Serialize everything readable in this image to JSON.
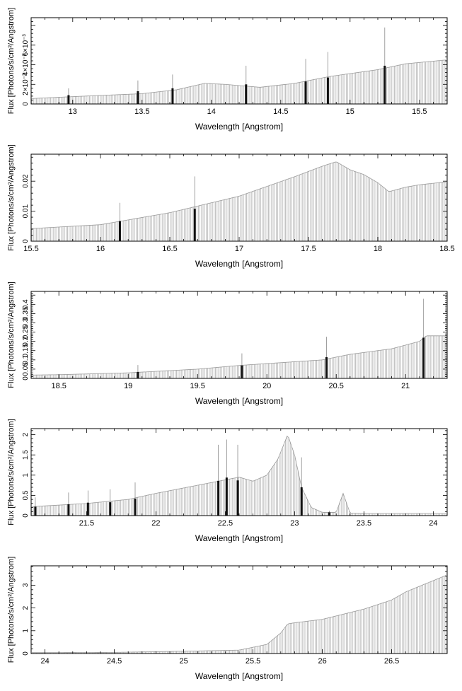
{
  "chart_data": [
    {
      "type": "bar",
      "xlabel": "Wavelength [Angstrom]",
      "ylabel": "Flux [Photons/s/cm²/Angstrom]",
      "xlim": [
        12.7,
        15.7
      ],
      "ylim": [
        0,
        0.0088
      ],
      "xticks": [
        13,
        13.5,
        14,
        14.5,
        15,
        15.5
      ],
      "xtick_labels": [
        "13",
        "13.5",
        "14",
        "14.5",
        "15",
        "15.5"
      ],
      "yticks": [
        0,
        0.002,
        0.004,
        0.006
      ],
      "ytick_labels": [
        "0",
        "2×10⁻³",
        "4×10⁻³",
        "6×10⁻³"
      ],
      "continuum": [
        [
          12.7,
          0.00055
        ],
        [
          13.0,
          0.00075
        ],
        [
          13.5,
          0.00105
        ],
        [
          13.75,
          0.00145
        ],
        [
          13.95,
          0.0021
        ],
        [
          14.1,
          0.002
        ],
        [
          14.35,
          0.0017
        ],
        [
          14.6,
          0.0021
        ],
        [
          14.85,
          0.0028
        ],
        [
          15.0,
          0.0031
        ],
        [
          15.2,
          0.0035
        ],
        [
          15.4,
          0.0041
        ],
        [
          15.7,
          0.0045
        ]
      ],
      "lines": [
        {
          "x": 12.97,
          "y": 0.0009,
          "err": 0.0016
        },
        {
          "x": 13.47,
          "y": 0.0013,
          "err": 0.0024
        },
        {
          "x": 13.72,
          "y": 0.0016,
          "err": 0.003
        },
        {
          "x": 14.25,
          "y": 0.002,
          "err": 0.0039
        },
        {
          "x": 14.68,
          "y": 0.0023,
          "err": 0.0046
        },
        {
          "x": 14.84,
          "y": 0.0027,
          "err": 0.0053
        },
        {
          "x": 15.25,
          "y": 0.0039,
          "err": 0.0078
        }
      ]
    },
    {
      "type": "bar",
      "xlabel": "Wavelength [Angstrom]",
      "ylabel": "Flux [Photons/s/cm²/Angstrom]",
      "xlim": [
        15.5,
        18.5
      ],
      "ylim": [
        0,
        0.029
      ],
      "xticks": [
        15.5,
        16,
        16.5,
        17,
        17.5,
        18,
        18.5
      ],
      "xtick_labels": [
        "15.5",
        "16",
        "16.5",
        "17",
        "17.5",
        "18",
        "18.5"
      ],
      "yticks": [
        0,
        0.01,
        0.02
      ],
      "ytick_labels": [
        "0",
        "0.01",
        "0.02"
      ],
      "continuum": [
        [
          15.5,
          0.0042
        ],
        [
          16.0,
          0.0055
        ],
        [
          16.5,
          0.0095
        ],
        [
          17.0,
          0.015
        ],
        [
          17.4,
          0.0215
        ],
        [
          17.6,
          0.025
        ],
        [
          17.7,
          0.0265
        ],
        [
          17.8,
          0.0238
        ],
        [
          17.9,
          0.0222
        ],
        [
          18.0,
          0.0195
        ],
        [
          18.08,
          0.0165
        ],
        [
          18.2,
          0.018
        ],
        [
          18.3,
          0.0188
        ],
        [
          18.5,
          0.0198
        ]
      ],
      "lines": [
        {
          "x": 16.14,
          "y": 0.0067,
          "err": 0.0128
        },
        {
          "x": 16.68,
          "y": 0.0108,
          "err": 0.0216
        }
      ]
    },
    {
      "type": "bar",
      "xlabel": "Wavelength [Angstrom]",
      "ylabel": "Flux [Photons/s/cm²/Angstrom]",
      "xlim": [
        18.3,
        21.3
      ],
      "ylim": [
        0,
        0.47
      ],
      "xticks": [
        18.5,
        19,
        19.5,
        20,
        20.5,
        21
      ],
      "xtick_labels": [
        "18.5",
        "19",
        "19.5",
        "20",
        "20.5",
        "21"
      ],
      "yticks": [
        0,
        0.05,
        0.1,
        0.15,
        0.2,
        0.25,
        0.3,
        0.35,
        0.4
      ],
      "ytick_labels": [
        "0",
        "0.05",
        "0.1",
        "0.15",
        "0.2",
        "0.25",
        "0.3",
        "0.35",
        "0.4"
      ],
      "continuum": [
        [
          18.3,
          0.018
        ],
        [
          18.5,
          0.02
        ],
        [
          19.0,
          0.03
        ],
        [
          19.5,
          0.05
        ],
        [
          19.8,
          0.07
        ],
        [
          20.0,
          0.08
        ],
        [
          20.4,
          0.1
        ],
        [
          20.6,
          0.13
        ],
        [
          20.9,
          0.16
        ],
        [
          21.1,
          0.2
        ],
        [
          21.15,
          0.23
        ],
        [
          21.3,
          0.23
        ]
      ],
      "lines": [
        {
          "x": 19.07,
          "y": 0.035,
          "err": 0.072
        },
        {
          "x": 19.82,
          "y": 0.07,
          "err": 0.135
        },
        {
          "x": 20.43,
          "y": 0.115,
          "err": 0.225
        },
        {
          "x": 21.13,
          "y": 0.22,
          "err": 0.43
        }
      ]
    },
    {
      "type": "bar",
      "xlabel": "Wavelength [Angstrom]",
      "ylabel": "Flux [Photons/s/cm²/Angstrom]",
      "xlim": [
        21.1,
        24.1
      ],
      "ylim": [
        0,
        2.15
      ],
      "xticks": [
        21.5,
        22,
        22.5,
        23,
        23.5,
        24
      ],
      "xtick_labels": [
        "21.5",
        "22",
        "22.5",
        "23",
        "23.5",
        "24"
      ],
      "yticks": [
        0,
        0.5,
        1,
        1.5,
        2
      ],
      "ytick_labels": [
        "0",
        "0.5",
        "1",
        "1.5",
        "2"
      ],
      "continuum": [
        [
          21.1,
          0.22
        ],
        [
          21.5,
          0.3
        ],
        [
          21.8,
          0.4
        ],
        [
          22.0,
          0.55
        ],
        [
          22.3,
          0.75
        ],
        [
          22.6,
          0.95
        ],
        [
          22.7,
          0.85
        ],
        [
          22.8,
          1.0
        ],
        [
          22.88,
          1.4
        ],
        [
          22.95,
          2.0
        ],
        [
          23.0,
          1.5
        ],
        [
          23.05,
          0.7
        ],
        [
          23.12,
          0.2
        ],
        [
          23.2,
          0.08
        ],
        [
          23.3,
          0.08
        ],
        [
          23.35,
          0.55
        ],
        [
          23.4,
          0.06
        ],
        [
          23.5,
          0.05
        ],
        [
          24.1,
          0.05
        ]
      ],
      "lines": [
        {
          "x": 21.13,
          "y": 0.22,
          "err": 0.45
        },
        {
          "x": 21.37,
          "y": 0.28,
          "err": 0.57
        },
        {
          "x": 21.51,
          "y": 0.32,
          "err": 0.62
        },
        {
          "x": 21.67,
          "y": 0.33,
          "err": 0.65
        },
        {
          "x": 21.85,
          "y": 0.42,
          "err": 0.82
        },
        {
          "x": 22.45,
          "y": 0.86,
          "err": 1.75
        },
        {
          "x": 22.51,
          "y": 0.94,
          "err": 1.88
        },
        {
          "x": 22.59,
          "y": 0.87,
          "err": 1.75
        },
        {
          "x": 23.05,
          "y": 0.7,
          "err": 1.44
        },
        {
          "x": 23.25,
          "y": 0.08,
          "err": 0.12
        }
      ]
    },
    {
      "type": "bar",
      "xlabel": "Wavelength [Angstrom]",
      "ylabel": "Flux [Photons/s/cm²/Angstrom]",
      "xlim": [
        23.9,
        26.9
      ],
      "ylim": [
        0,
        3.85
      ],
      "xticks": [
        24,
        24.5,
        25,
        25.5,
        26,
        26.5
      ],
      "xtick_labels": [
        "24",
        "24.5",
        "25",
        "25.5",
        "26",
        "26.5"
      ],
      "yticks": [
        0,
        1,
        2,
        3
      ],
      "ytick_labels": [
        "0",
        "1",
        "2",
        "3"
      ],
      "continuum": [
        [
          23.9,
          0.04
        ],
        [
          24.5,
          0.05
        ],
        [
          25.0,
          0.1
        ],
        [
          25.4,
          0.15
        ],
        [
          25.6,
          0.4
        ],
        [
          25.7,
          0.9
        ],
        [
          25.75,
          1.3
        ],
        [
          25.8,
          1.35
        ],
        [
          26.0,
          1.5
        ],
        [
          26.3,
          1.95
        ],
        [
          26.5,
          2.35
        ],
        [
          26.6,
          2.7
        ],
        [
          26.9,
          3.45
        ]
      ],
      "lines": []
    }
  ]
}
